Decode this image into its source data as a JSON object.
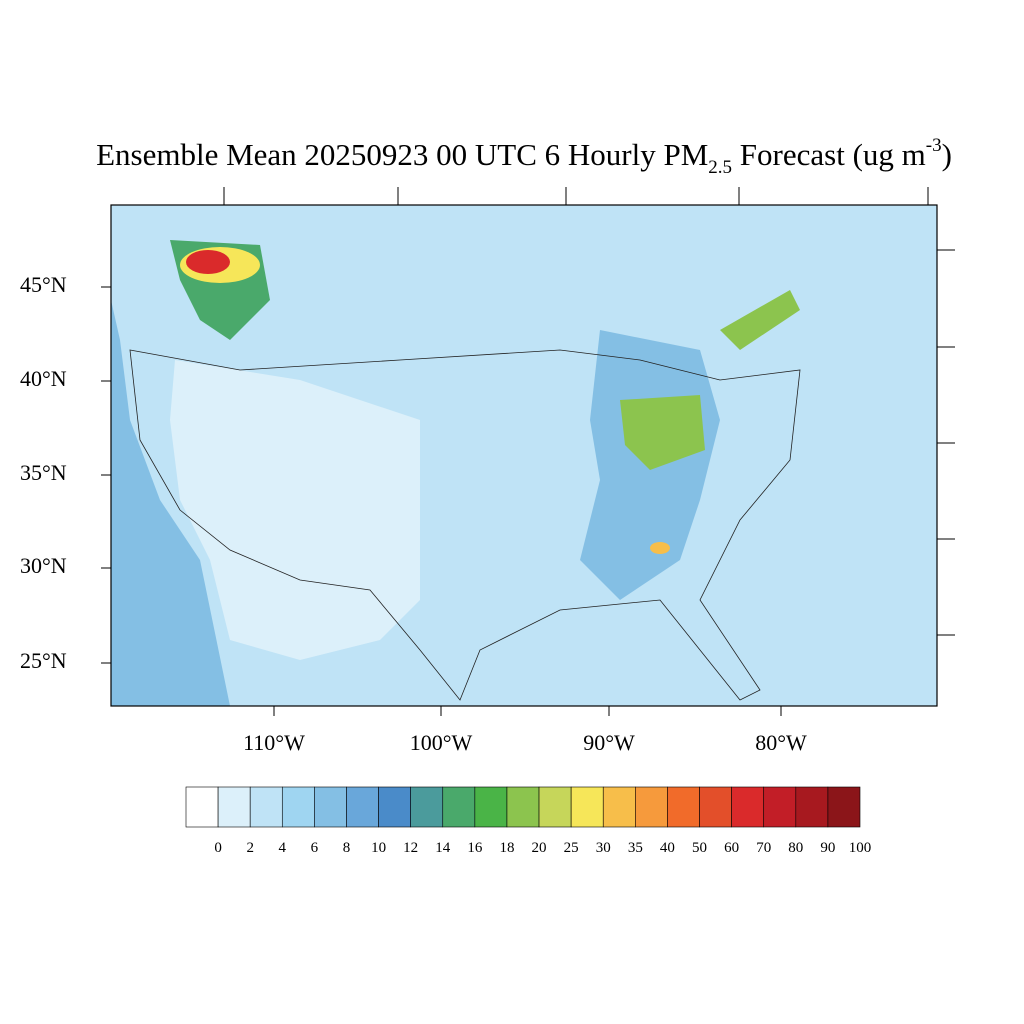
{
  "title": {
    "main": "Ensemble Mean 20250923 00 UTC 6 Hourly PM",
    "subscript": "2.5",
    "middle": " Forecast (ug m",
    "superscript": "-3",
    "end": ")"
  },
  "map": {
    "lat_labels": [
      "45°N",
      "40°N",
      "35°N",
      "30°N",
      "25°N"
    ],
    "lon_labels": [
      "110°W",
      "100°W",
      "90°W",
      "80°W"
    ]
  },
  "colorbar": {
    "colors": [
      "#ffffff",
      "#dcf0fa",
      "#bfe3f6",
      "#9fd5f1",
      "#84bfe4",
      "#69a7da",
      "#4a8bc9",
      "#4b9b9c",
      "#4aa96b",
      "#4ab447",
      "#8cc44e",
      "#c6d65a",
      "#f6e659",
      "#f7be4a",
      "#f69a3c",
      "#f16b2a",
      "#e34f2a",
      "#da2a2b",
      "#c21e27",
      "#a7191f",
      "#8b1519"
    ],
    "labels": [
      0,
      2,
      4,
      6,
      8,
      10,
      12,
      14,
      16,
      18,
      20,
      25,
      30,
      35,
      40,
      50,
      60,
      70,
      80,
      90,
      100
    ]
  }
}
